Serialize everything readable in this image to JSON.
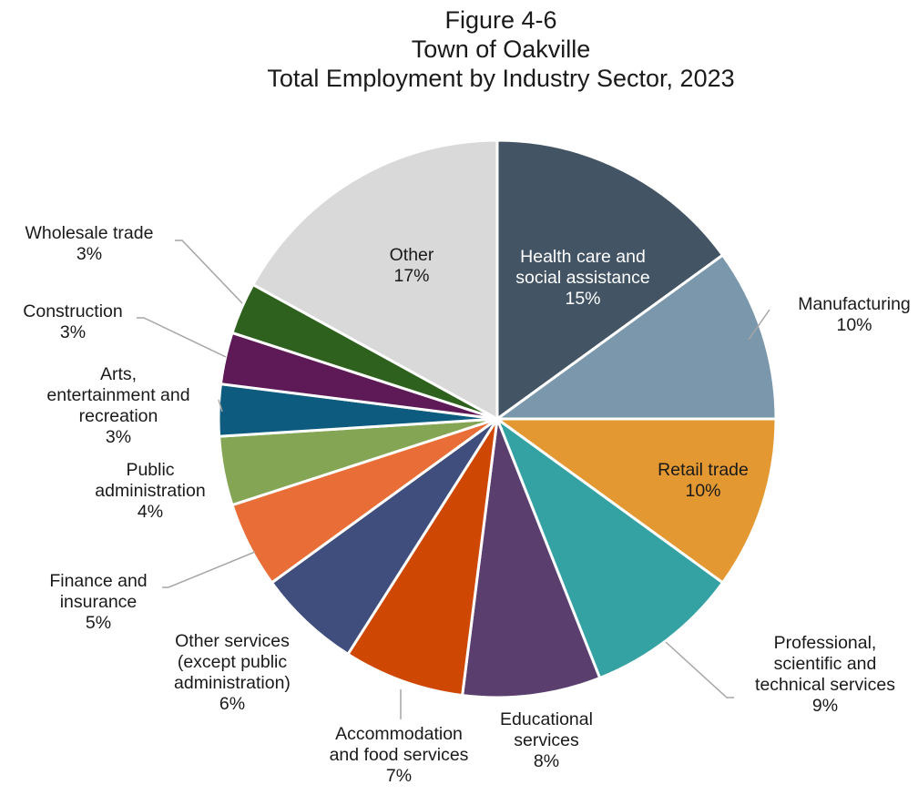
{
  "chart_data": {
    "type": "pie",
    "title": [
      "Figure 4-6",
      "Town of Oakville",
      "Total Employment by Industry Sector, 2023"
    ],
    "unit": "%",
    "slices": [
      {
        "label": [
          "Health care and",
          "social assistance"
        ],
        "value": 15,
        "color": "#435465"
      },
      {
        "label": [
          "Manufacturing"
        ],
        "value": 10,
        "color": "#7A97AC"
      },
      {
        "label": [
          "Retail trade"
        ],
        "value": 10,
        "color": "#E39831"
      },
      {
        "label": [
          "Professional,",
          "scientific and",
          "technical services"
        ],
        "value": 9,
        "color": "#34A1A3"
      },
      {
        "label": [
          "Educational",
          "services"
        ],
        "value": 8,
        "color": "#5A3E6E"
      },
      {
        "label": [
          "Accommodation",
          "and food services"
        ],
        "value": 7,
        "color": "#CE4804"
      },
      {
        "label": [
          "Other services",
          "(except public",
          "administration)"
        ],
        "value": 6,
        "color": "#404E7E"
      },
      {
        "label": [
          "Finance and",
          "insurance"
        ],
        "value": 5,
        "color": "#E96D36"
      },
      {
        "label": [
          "Public",
          "administration"
        ],
        "value": 4,
        "color": "#83A554"
      },
      {
        "label": [
          "Arts,",
          "entertainment and",
          "recreation"
        ],
        "value": 3,
        "color": "#0D5C7F"
      },
      {
        "label": [
          "Construction"
        ],
        "value": 3,
        "color": "#5E1A57"
      },
      {
        "label": [
          "Wholesale trade"
        ],
        "value": 3,
        "color": "#2E611E"
      },
      {
        "label": [
          "Other"
        ],
        "value": 17,
        "color": "#D9D9D9"
      }
    ]
  }
}
